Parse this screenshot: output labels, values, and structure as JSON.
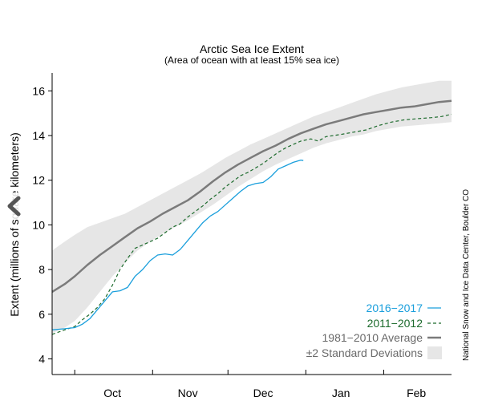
{
  "nav": {
    "prev_icon": "chevron-left-icon"
  },
  "chart_data": {
    "type": "line",
    "title": "Arctic Sea Ice Extent",
    "subtitle": "(Area of ocean with at least 15% sea ice)",
    "ylabel": "Extent (millions of square kilometers)",
    "xlabel": "",
    "ylim": [
      3.3,
      16.8
    ],
    "yticks": [
      4,
      6,
      8,
      10,
      12,
      14,
      16
    ],
    "xlim": [
      "Sep 22",
      "Feb 28"
    ],
    "xticks": [
      {
        "label": "Oct",
        "at": "Oct 16"
      },
      {
        "label": "Nov",
        "at": "Nov 15"
      },
      {
        "label": "Dec",
        "at": "Dec 15"
      },
      {
        "label": "Jan",
        "at": "Jan 15"
      },
      {
        "label": "Feb",
        "at": "Feb 14"
      }
    ],
    "month_boundaries": [
      "Oct 1",
      "Nov 1",
      "Dec 1",
      "Jan 1",
      "Feb 1"
    ],
    "credit": "National Snow and Ice Data Center, Boulder CO",
    "colors": {
      "current": "#1a9fdc",
      "prior": "#1d6b2d",
      "average": "#7b7b7b",
      "band": "#e6e6e6",
      "axis": "#000000"
    },
    "series": [
      {
        "name": "2016−2017",
        "style": "solid",
        "points": [
          [
            "Sep 22",
            5.3
          ],
          [
            "Sep 27",
            5.35
          ],
          [
            "Oct 1",
            5.4
          ],
          [
            "Oct 4",
            5.55
          ],
          [
            "Oct 7",
            5.8
          ],
          [
            "Oct 10",
            6.2
          ],
          [
            "Oct 13",
            6.6
          ],
          [
            "Oct 16",
            7.0
          ],
          [
            "Oct 19",
            7.05
          ],
          [
            "Oct 22",
            7.2
          ],
          [
            "Oct 25",
            7.7
          ],
          [
            "Oct 28",
            8.0
          ],
          [
            "Oct 31",
            8.4
          ],
          [
            "Nov 3",
            8.65
          ],
          [
            "Nov 6",
            8.7
          ],
          [
            "Nov 9",
            8.65
          ],
          [
            "Nov 12",
            8.9
          ],
          [
            "Nov 15",
            9.3
          ],
          [
            "Nov 18",
            9.7
          ],
          [
            "Nov 21",
            10.1
          ],
          [
            "Nov 24",
            10.4
          ],
          [
            "Nov 27",
            10.6
          ],
          [
            "Nov 30",
            10.9
          ],
          [
            "Dec 3",
            11.2
          ],
          [
            "Dec 6",
            11.5
          ],
          [
            "Dec 9",
            11.75
          ],
          [
            "Dec 12",
            11.85
          ],
          [
            "Dec 15",
            11.9
          ],
          [
            "Dec 18",
            12.15
          ],
          [
            "Dec 21",
            12.5
          ],
          [
            "Dec 24",
            12.65
          ],
          [
            "Dec 27",
            12.8
          ],
          [
            "Dec 30",
            12.9
          ],
          [
            "Dec 31",
            12.88
          ]
        ]
      },
      {
        "name": "2011−2012",
        "style": "dashed",
        "points": [
          [
            "Sep 22",
            5.1
          ],
          [
            "Sep 27",
            5.3
          ],
          [
            "Oct 1",
            5.45
          ],
          [
            "Oct 4",
            5.75
          ],
          [
            "Oct 7",
            6.0
          ],
          [
            "Oct 10",
            6.3
          ],
          [
            "Oct 13",
            6.7
          ],
          [
            "Oct 16",
            7.3
          ],
          [
            "Oct 19",
            8.0
          ],
          [
            "Oct 22",
            8.5
          ],
          [
            "Oct 25",
            8.95
          ],
          [
            "Oct 28",
            9.1
          ],
          [
            "Oct 31",
            9.25
          ],
          [
            "Nov 3",
            9.4
          ],
          [
            "Nov 6",
            9.65
          ],
          [
            "Nov 9",
            9.9
          ],
          [
            "Nov 12",
            10.05
          ],
          [
            "Nov 15",
            10.35
          ],
          [
            "Nov 18",
            10.6
          ],
          [
            "Nov 21",
            10.85
          ],
          [
            "Nov 24",
            11.15
          ],
          [
            "Nov 27",
            11.4
          ],
          [
            "Nov 30",
            11.7
          ],
          [
            "Dec 3",
            11.95
          ],
          [
            "Dec 6",
            12.2
          ],
          [
            "Dec 9",
            12.35
          ],
          [
            "Dec 12",
            12.55
          ],
          [
            "Dec 15",
            12.75
          ],
          [
            "Dec 18",
            13.0
          ],
          [
            "Dec 21",
            13.25
          ],
          [
            "Dec 24",
            13.45
          ],
          [
            "Dec 27",
            13.6
          ],
          [
            "Dec 30",
            13.75
          ],
          [
            "Jan 3",
            13.85
          ],
          [
            "Jan 6",
            13.75
          ],
          [
            "Jan 9",
            13.95
          ],
          [
            "Jan 12",
            14.0
          ],
          [
            "Jan 15",
            14.05
          ],
          [
            "Jan 20",
            14.15
          ],
          [
            "Jan 25",
            14.25
          ],
          [
            "Jan 30",
            14.45
          ],
          [
            "Feb 4",
            14.6
          ],
          [
            "Feb 9",
            14.7
          ],
          [
            "Feb 14",
            14.75
          ],
          [
            "Feb 20",
            14.8
          ],
          [
            "Feb 24",
            14.85
          ],
          [
            "Feb 28",
            14.95
          ]
        ]
      },
      {
        "name": "1981−2010 Average",
        "style": "thick",
        "points": [
          [
            "Sep 22",
            7.0
          ],
          [
            "Sep 27",
            7.35
          ],
          [
            "Oct 1",
            7.7
          ],
          [
            "Oct 6",
            8.2
          ],
          [
            "Oct 11",
            8.65
          ],
          [
            "Oct 16",
            9.05
          ],
          [
            "Oct 21",
            9.45
          ],
          [
            "Oct 26",
            9.85
          ],
          [
            "Oct 31",
            10.15
          ],
          [
            "Nov 5",
            10.5
          ],
          [
            "Nov 10",
            10.8
          ],
          [
            "Nov 15",
            11.1
          ],
          [
            "Nov 20",
            11.5
          ],
          [
            "Nov 25",
            11.95
          ],
          [
            "Nov 30",
            12.35
          ],
          [
            "Dec 5",
            12.7
          ],
          [
            "Dec 10",
            13.0
          ],
          [
            "Dec 15",
            13.3
          ],
          [
            "Dec 20",
            13.55
          ],
          [
            "Dec 25",
            13.85
          ],
          [
            "Dec 30",
            14.1
          ],
          [
            "Jan 4",
            14.3
          ],
          [
            "Jan 9",
            14.5
          ],
          [
            "Jan 14",
            14.65
          ],
          [
            "Jan 19",
            14.8
          ],
          [
            "Jan 24",
            14.95
          ],
          [
            "Jan 29",
            15.05
          ],
          [
            "Feb 3",
            15.15
          ],
          [
            "Feb 8",
            15.25
          ],
          [
            "Feb 13",
            15.3
          ],
          [
            "Feb 18",
            15.4
          ],
          [
            "Feb 23",
            15.5
          ],
          [
            "Feb 28",
            15.55
          ]
        ]
      }
    ],
    "band": {
      "name": "±2 Standard Deviations",
      "upper": [
        [
          "Sep 22",
          8.85
        ],
        [
          "Sep 27",
          9.25
        ],
        [
          "Oct 1",
          9.55
        ],
        [
          "Oct 6",
          9.9
        ],
        [
          "Oct 11",
          10.1
        ],
        [
          "Oct 16",
          10.3
        ],
        [
          "Oct 21",
          10.5
        ],
        [
          "Oct 26",
          10.8
        ],
        [
          "Oct 31",
          11.1
        ],
        [
          "Nov 5",
          11.4
        ],
        [
          "Nov 10",
          11.7
        ],
        [
          "Nov 15",
          12.0
        ],
        [
          "Nov 20",
          12.3
        ],
        [
          "Nov 25",
          12.65
        ],
        [
          "Nov 30",
          13.0
        ],
        [
          "Dec 5",
          13.3
        ],
        [
          "Dec 10",
          13.6
        ],
        [
          "Dec 15",
          13.85
        ],
        [
          "Dec 20",
          14.1
        ],
        [
          "Dec 25",
          14.35
        ],
        [
          "Dec 30",
          14.6
        ],
        [
          "Jan 4",
          14.85
        ],
        [
          "Jan 9",
          15.05
        ],
        [
          "Jan 14",
          15.25
        ],
        [
          "Jan 19",
          15.45
        ],
        [
          "Jan 24",
          15.65
        ],
        [
          "Jan 29",
          15.85
        ],
        [
          "Feb 3",
          16.0
        ],
        [
          "Feb 8",
          16.15
        ],
        [
          "Feb 13",
          16.25
        ],
        [
          "Feb 18",
          16.35
        ],
        [
          "Feb 23",
          16.45
        ],
        [
          "Feb 28",
          16.45
        ]
      ],
      "lower": [
        [
          "Sep 22",
          5.15
        ],
        [
          "Sep 27",
          5.4
        ],
        [
          "Oct 1",
          5.7
        ],
        [
          "Oct 6",
          6.3
        ],
        [
          "Oct 11",
          7.0
        ],
        [
          "Oct 16",
          7.7
        ],
        [
          "Oct 21",
          8.3
        ],
        [
          "Oct 26",
          8.85
        ],
        [
          "Oct 31",
          9.25
        ],
        [
          "Nov 5",
          9.6
        ],
        [
          "Nov 10",
          9.9
        ],
        [
          "Nov 15",
          10.2
        ],
        [
          "Nov 20",
          10.55
        ],
        [
          "Nov 25",
          10.9
        ],
        [
          "Nov 30",
          11.3
        ],
        [
          "Dec 5",
          11.7
        ],
        [
          "Dec 10",
          12.05
        ],
        [
          "Dec 15",
          12.4
        ],
        [
          "Dec 20",
          12.7
        ],
        [
          "Dec 25",
          12.95
        ],
        [
          "Dec 30",
          13.2
        ],
        [
          "Jan 4",
          13.45
        ],
        [
          "Jan 9",
          13.65
        ],
        [
          "Jan 14",
          13.8
        ],
        [
          "Jan 19",
          13.95
        ],
        [
          "Jan 24",
          14.05
        ],
        [
          "Jan 29",
          14.2
        ],
        [
          "Feb 3",
          14.3
        ],
        [
          "Feb 8",
          14.4
        ],
        [
          "Feb 13",
          14.45
        ],
        [
          "Feb 18",
          14.5
        ],
        [
          "Feb 23",
          14.55
        ],
        [
          "Feb 28",
          14.6
        ]
      ]
    },
    "legend": [
      {
        "label": "2016−2017",
        "key": "current"
      },
      {
        "label": "2011−2012",
        "key": "prior"
      },
      {
        "label": "1981−2010 Average",
        "key": "average"
      },
      {
        "label": "±2 Standard Deviations",
        "key": "band"
      }
    ],
    "legend_placement": "bottom-right",
    "grid": false
  }
}
